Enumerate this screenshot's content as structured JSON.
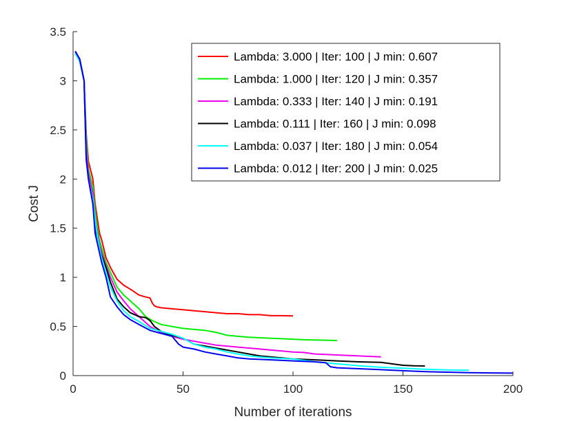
{
  "chart_data": {
    "type": "line",
    "title": "",
    "xlabel": "Number of iterations",
    "ylabel": "Cost J",
    "xlim": [
      0,
      200
    ],
    "ylim": [
      0,
      3.5
    ],
    "xticks": [
      0,
      50,
      100,
      150,
      200
    ],
    "xtick_labels": [
      "0",
      "50",
      "100",
      "150",
      "200"
    ],
    "yticks": [
      0,
      0.5,
      1,
      1.5,
      2,
      2.5,
      3,
      3.5
    ],
    "ytick_labels": [
      "0",
      "0.5",
      "1",
      "1.5",
      "2",
      "2.5",
      "3",
      "3.5"
    ],
    "grid": false,
    "legend_position": "top-right",
    "series": [
      {
        "name": "Lambda: 3.000 | Iter: 100 | J min: 0.607",
        "color": "#ff0000",
        "x": [
          1,
          3,
          5,
          6,
          7,
          9,
          10,
          11,
          12,
          13,
          15,
          17,
          20,
          23,
          26,
          30,
          33,
          35,
          36,
          37,
          38,
          40,
          45,
          50,
          55,
          60,
          65,
          70,
          75,
          80,
          85,
          90,
          95,
          100
        ],
        "y": [
          3.3,
          3.22,
          3.0,
          2.45,
          2.18,
          2.0,
          1.75,
          1.6,
          1.45,
          1.38,
          1.2,
          1.1,
          0.98,
          0.92,
          0.88,
          0.82,
          0.8,
          0.79,
          0.74,
          0.71,
          0.7,
          0.69,
          0.68,
          0.67,
          0.66,
          0.65,
          0.64,
          0.63,
          0.63,
          0.62,
          0.62,
          0.61,
          0.61,
          0.607
        ]
      },
      {
        "name": "Lambda: 1.000 | Iter: 120 | J min: 0.357",
        "color": "#00ee00",
        "x": [
          1,
          3,
          5,
          6,
          7,
          9,
          10,
          11,
          12,
          13,
          15,
          17,
          20,
          23,
          26,
          30,
          33,
          36,
          40,
          45,
          50,
          55,
          60,
          65,
          70,
          75,
          80,
          85,
          90,
          95,
          100,
          105,
          110,
          115,
          120
        ],
        "y": [
          3.28,
          3.2,
          3.0,
          2.4,
          2.1,
          1.92,
          1.68,
          1.5,
          1.38,
          1.3,
          1.15,
          1.05,
          0.9,
          0.82,
          0.76,
          0.68,
          0.6,
          0.56,
          0.52,
          0.5,
          0.48,
          0.47,
          0.46,
          0.44,
          0.41,
          0.4,
          0.39,
          0.385,
          0.38,
          0.375,
          0.37,
          0.365,
          0.362,
          0.36,
          0.357
        ]
      },
      {
        "name": "Lambda: 0.333 | Iter: 140 | J min: 0.191",
        "color": "#ee00ee",
        "x": [
          1,
          3,
          5,
          6,
          7,
          9,
          10,
          11,
          12,
          13,
          15,
          17,
          20,
          23,
          26,
          30,
          35,
          40,
          45,
          50,
          55,
          60,
          65,
          70,
          75,
          80,
          85,
          90,
          95,
          100,
          105,
          110,
          115,
          120,
          125,
          130,
          135,
          140
        ],
        "y": [
          3.28,
          3.2,
          3.0,
          2.3,
          2.05,
          1.85,
          1.6,
          1.45,
          1.33,
          1.25,
          1.12,
          1.0,
          0.85,
          0.76,
          0.68,
          0.6,
          0.5,
          0.44,
          0.4,
          0.37,
          0.35,
          0.33,
          0.31,
          0.3,
          0.29,
          0.28,
          0.27,
          0.26,
          0.25,
          0.24,
          0.235,
          0.22,
          0.215,
          0.21,
          0.205,
          0.2,
          0.195,
          0.191
        ]
      },
      {
        "name": "Lambda: 0.111 | Iter: 160 | J min: 0.098",
        "color": "#000000",
        "x": [
          1,
          3,
          5,
          6,
          7,
          9,
          10,
          11,
          12,
          13,
          15,
          17,
          20,
          23,
          26,
          30,
          33,
          35,
          37,
          40,
          45,
          50,
          55,
          60,
          65,
          70,
          75,
          80,
          85,
          90,
          95,
          100,
          110,
          120,
          130,
          140,
          145,
          150,
          155,
          160
        ],
        "y": [
          3.3,
          3.22,
          3.0,
          2.2,
          2.0,
          1.75,
          1.5,
          1.4,
          1.3,
          1.22,
          1.1,
          0.95,
          0.78,
          0.7,
          0.64,
          0.6,
          0.59,
          0.56,
          0.5,
          0.45,
          0.41,
          0.38,
          0.32,
          0.3,
          0.28,
          0.26,
          0.24,
          0.22,
          0.2,
          0.19,
          0.18,
          0.17,
          0.16,
          0.15,
          0.14,
          0.135,
          0.12,
          0.105,
          0.1,
          0.098
        ]
      },
      {
        "name": "Lambda: 0.037 | Iter: 180 | J min: 0.054",
        "color": "#00ffff",
        "x": [
          1,
          3,
          5,
          6,
          7,
          9,
          10,
          11,
          12,
          13,
          15,
          17,
          20,
          23,
          26,
          30,
          35,
          40,
          45,
          50,
          55,
          60,
          65,
          70,
          75,
          80,
          85,
          90,
          100,
          110,
          120,
          130,
          140,
          150,
          160,
          170,
          180
        ],
        "y": [
          3.28,
          3.2,
          3.0,
          2.2,
          2.0,
          1.8,
          1.6,
          1.42,
          1.3,
          1.2,
          1.05,
          0.9,
          0.76,
          0.66,
          0.6,
          0.55,
          0.48,
          0.45,
          0.42,
          0.38,
          0.32,
          0.29,
          0.27,
          0.24,
          0.22,
          0.2,
          0.19,
          0.18,
          0.17,
          0.14,
          0.12,
          0.1,
          0.085,
          0.075,
          0.065,
          0.058,
          0.054
        ]
      },
      {
        "name": "Lambda: 0.012 | Iter: 200 | J min: 0.025",
        "color": "#0000ee",
        "x": [
          1,
          3,
          5,
          6,
          7,
          9,
          10,
          11,
          12,
          13,
          15,
          17,
          20,
          23,
          26,
          30,
          35,
          40,
          45,
          48,
          50,
          55,
          60,
          65,
          70,
          75,
          80,
          90,
          100,
          110,
          115,
          117,
          120,
          130,
          140,
          150,
          160,
          170,
          180,
          190,
          200
        ],
        "y": [
          3.3,
          3.22,
          3.0,
          2.2,
          2.0,
          1.75,
          1.45,
          1.35,
          1.25,
          1.15,
          1.0,
          0.8,
          0.7,
          0.62,
          0.57,
          0.52,
          0.46,
          0.43,
          0.4,
          0.32,
          0.29,
          0.27,
          0.24,
          0.22,
          0.2,
          0.18,
          0.17,
          0.16,
          0.15,
          0.14,
          0.13,
          0.09,
          0.08,
          0.07,
          0.06,
          0.05,
          0.04,
          0.035,
          0.03,
          0.027,
          0.025
        ]
      }
    ]
  }
}
